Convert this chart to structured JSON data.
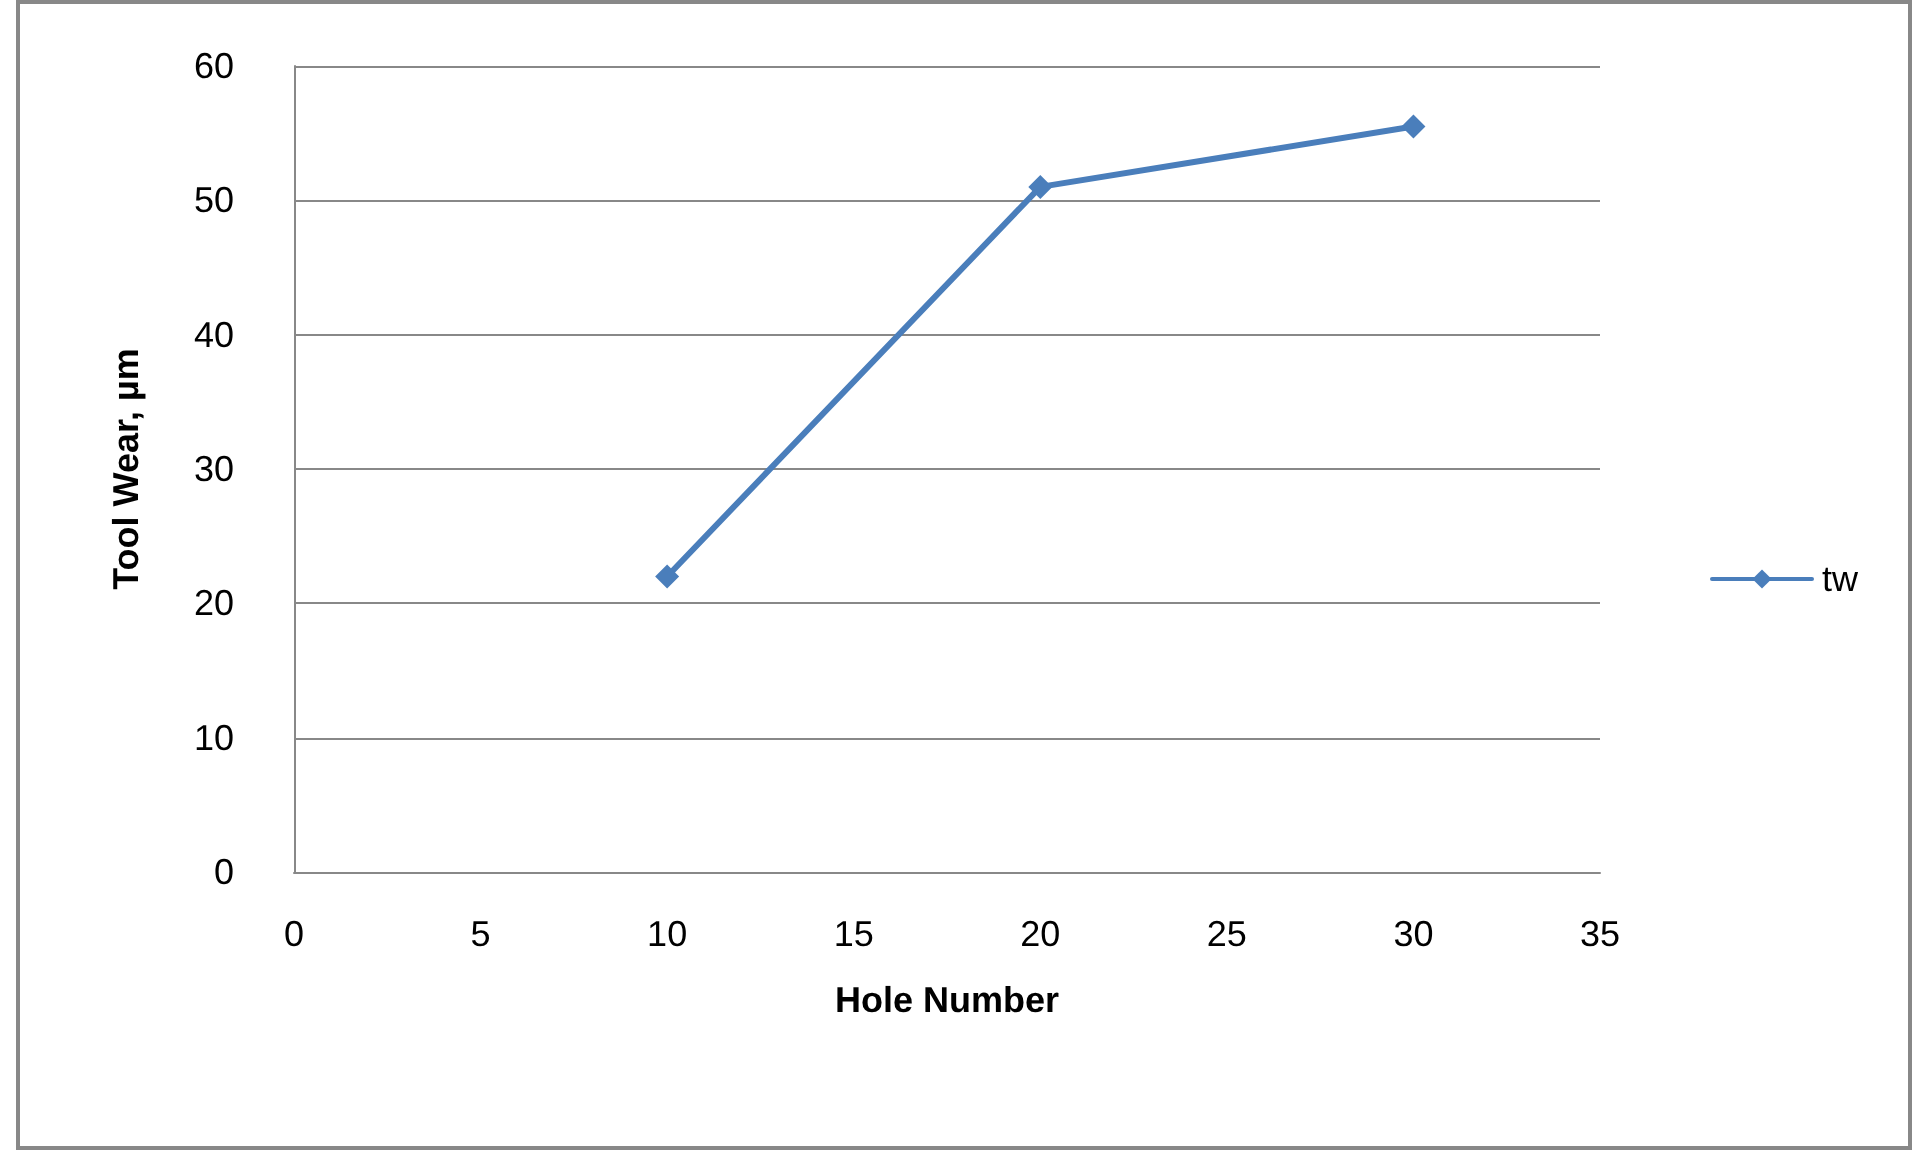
{
  "chart_data": {
    "type": "line",
    "xlabel": "Hole Number",
    "ylabel": "Tool Wear, µm",
    "x": [
      10,
      20,
      30
    ],
    "series": [
      {
        "name": "tw",
        "color": "#4a7ebb",
        "values": [
          22,
          51,
          55.5
        ]
      }
    ],
    "xlim": [
      0,
      35
    ],
    "xticks": [
      0,
      5,
      10,
      15,
      20,
      25,
      30,
      35
    ],
    "ylim": [
      0,
      60
    ],
    "yticks": [
      0,
      10,
      20,
      30,
      40,
      50,
      60
    ],
    "grid": "y",
    "legend": "right",
    "marker": "diamond",
    "line_style": "solid"
  }
}
